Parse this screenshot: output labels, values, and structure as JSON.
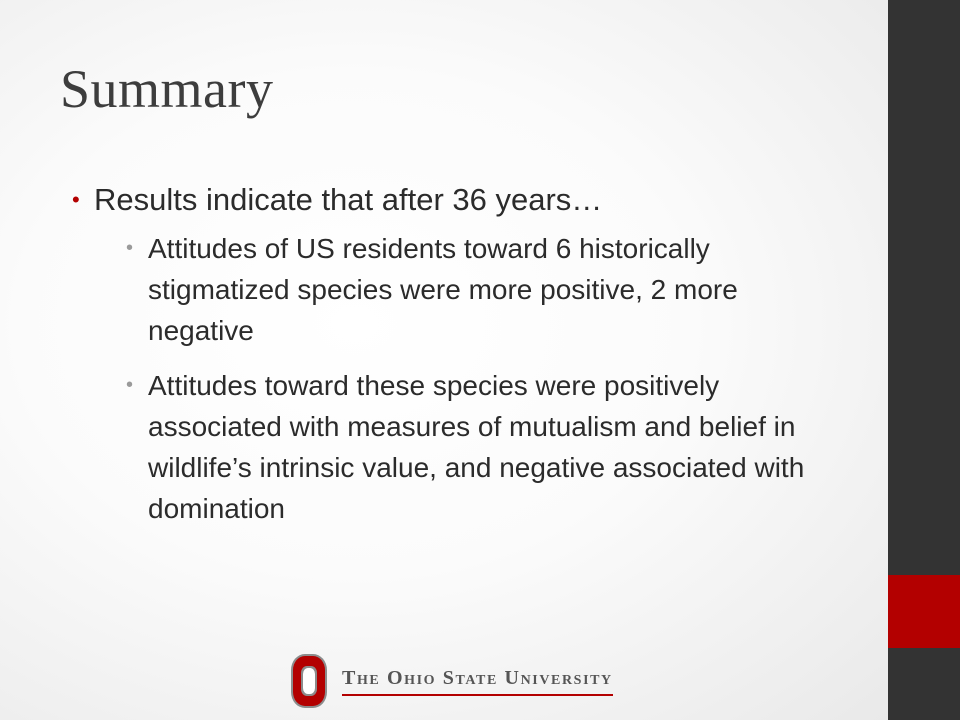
{
  "slide": {
    "title": "Summary",
    "bullet_main": "Results indicate that after 36 years…",
    "sub_bullets": [
      "Attitudes of US residents toward 6 historically stigmatized species were more positive, 2 more negative",
      "Attitudes toward these species were positively associated with measures of mutualism and belief in wildlife’s intrinsic value, and negative associated with domination"
    ]
  },
  "logo": {
    "wordmark": "The Ohio State University"
  },
  "colors": {
    "accent": "#b30000",
    "sidebar": "#333333",
    "text": "#2b2b2b"
  }
}
